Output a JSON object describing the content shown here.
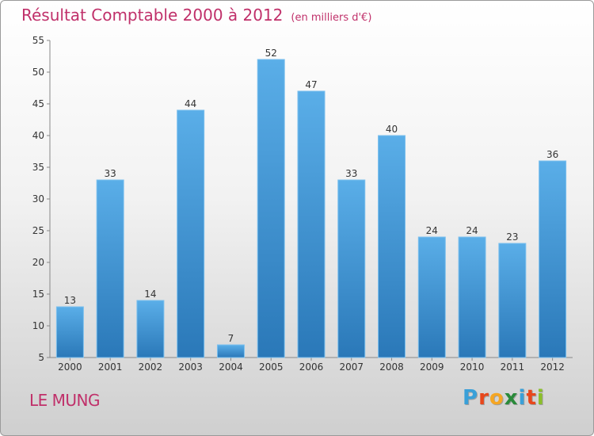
{
  "title": "Résultat Comptable 2000 à 2012",
  "subtitle": "(en milliers d'€)",
  "commune": "LE MUNG",
  "logo": {
    "letters": [
      "P",
      "r",
      "o",
      "x",
      "i",
      "t",
      "i"
    ],
    "colors": [
      "#3aa0d8",
      "#e8471c",
      "#f5a623",
      "#2a8a3a",
      "#3aa0d8",
      "#e8471c",
      "#8bbf2a"
    ]
  },
  "colors": {
    "bar": "#4ea4e0",
    "bar_dark": "#2e7fc0",
    "title": "#c0306a"
  },
  "chart_data": {
    "type": "bar",
    "title": "Résultat Comptable 2000 à 2012",
    "subtitle": "(en milliers d'€)",
    "xlabel": "",
    "ylabel": "",
    "categories": [
      "2000",
      "2001",
      "2002",
      "2003",
      "2004",
      "2005",
      "2006",
      "2007",
      "2008",
      "2009",
      "2010",
      "2011",
      "2012"
    ],
    "values": [
      13,
      33,
      14,
      44,
      7,
      52,
      47,
      33,
      40,
      24,
      24,
      23,
      36
    ],
    "ylim": [
      5,
      55
    ],
    "yticks": [
      5,
      10,
      15,
      20,
      25,
      30,
      35,
      40,
      45,
      50,
      55
    ],
    "grid": false
  }
}
